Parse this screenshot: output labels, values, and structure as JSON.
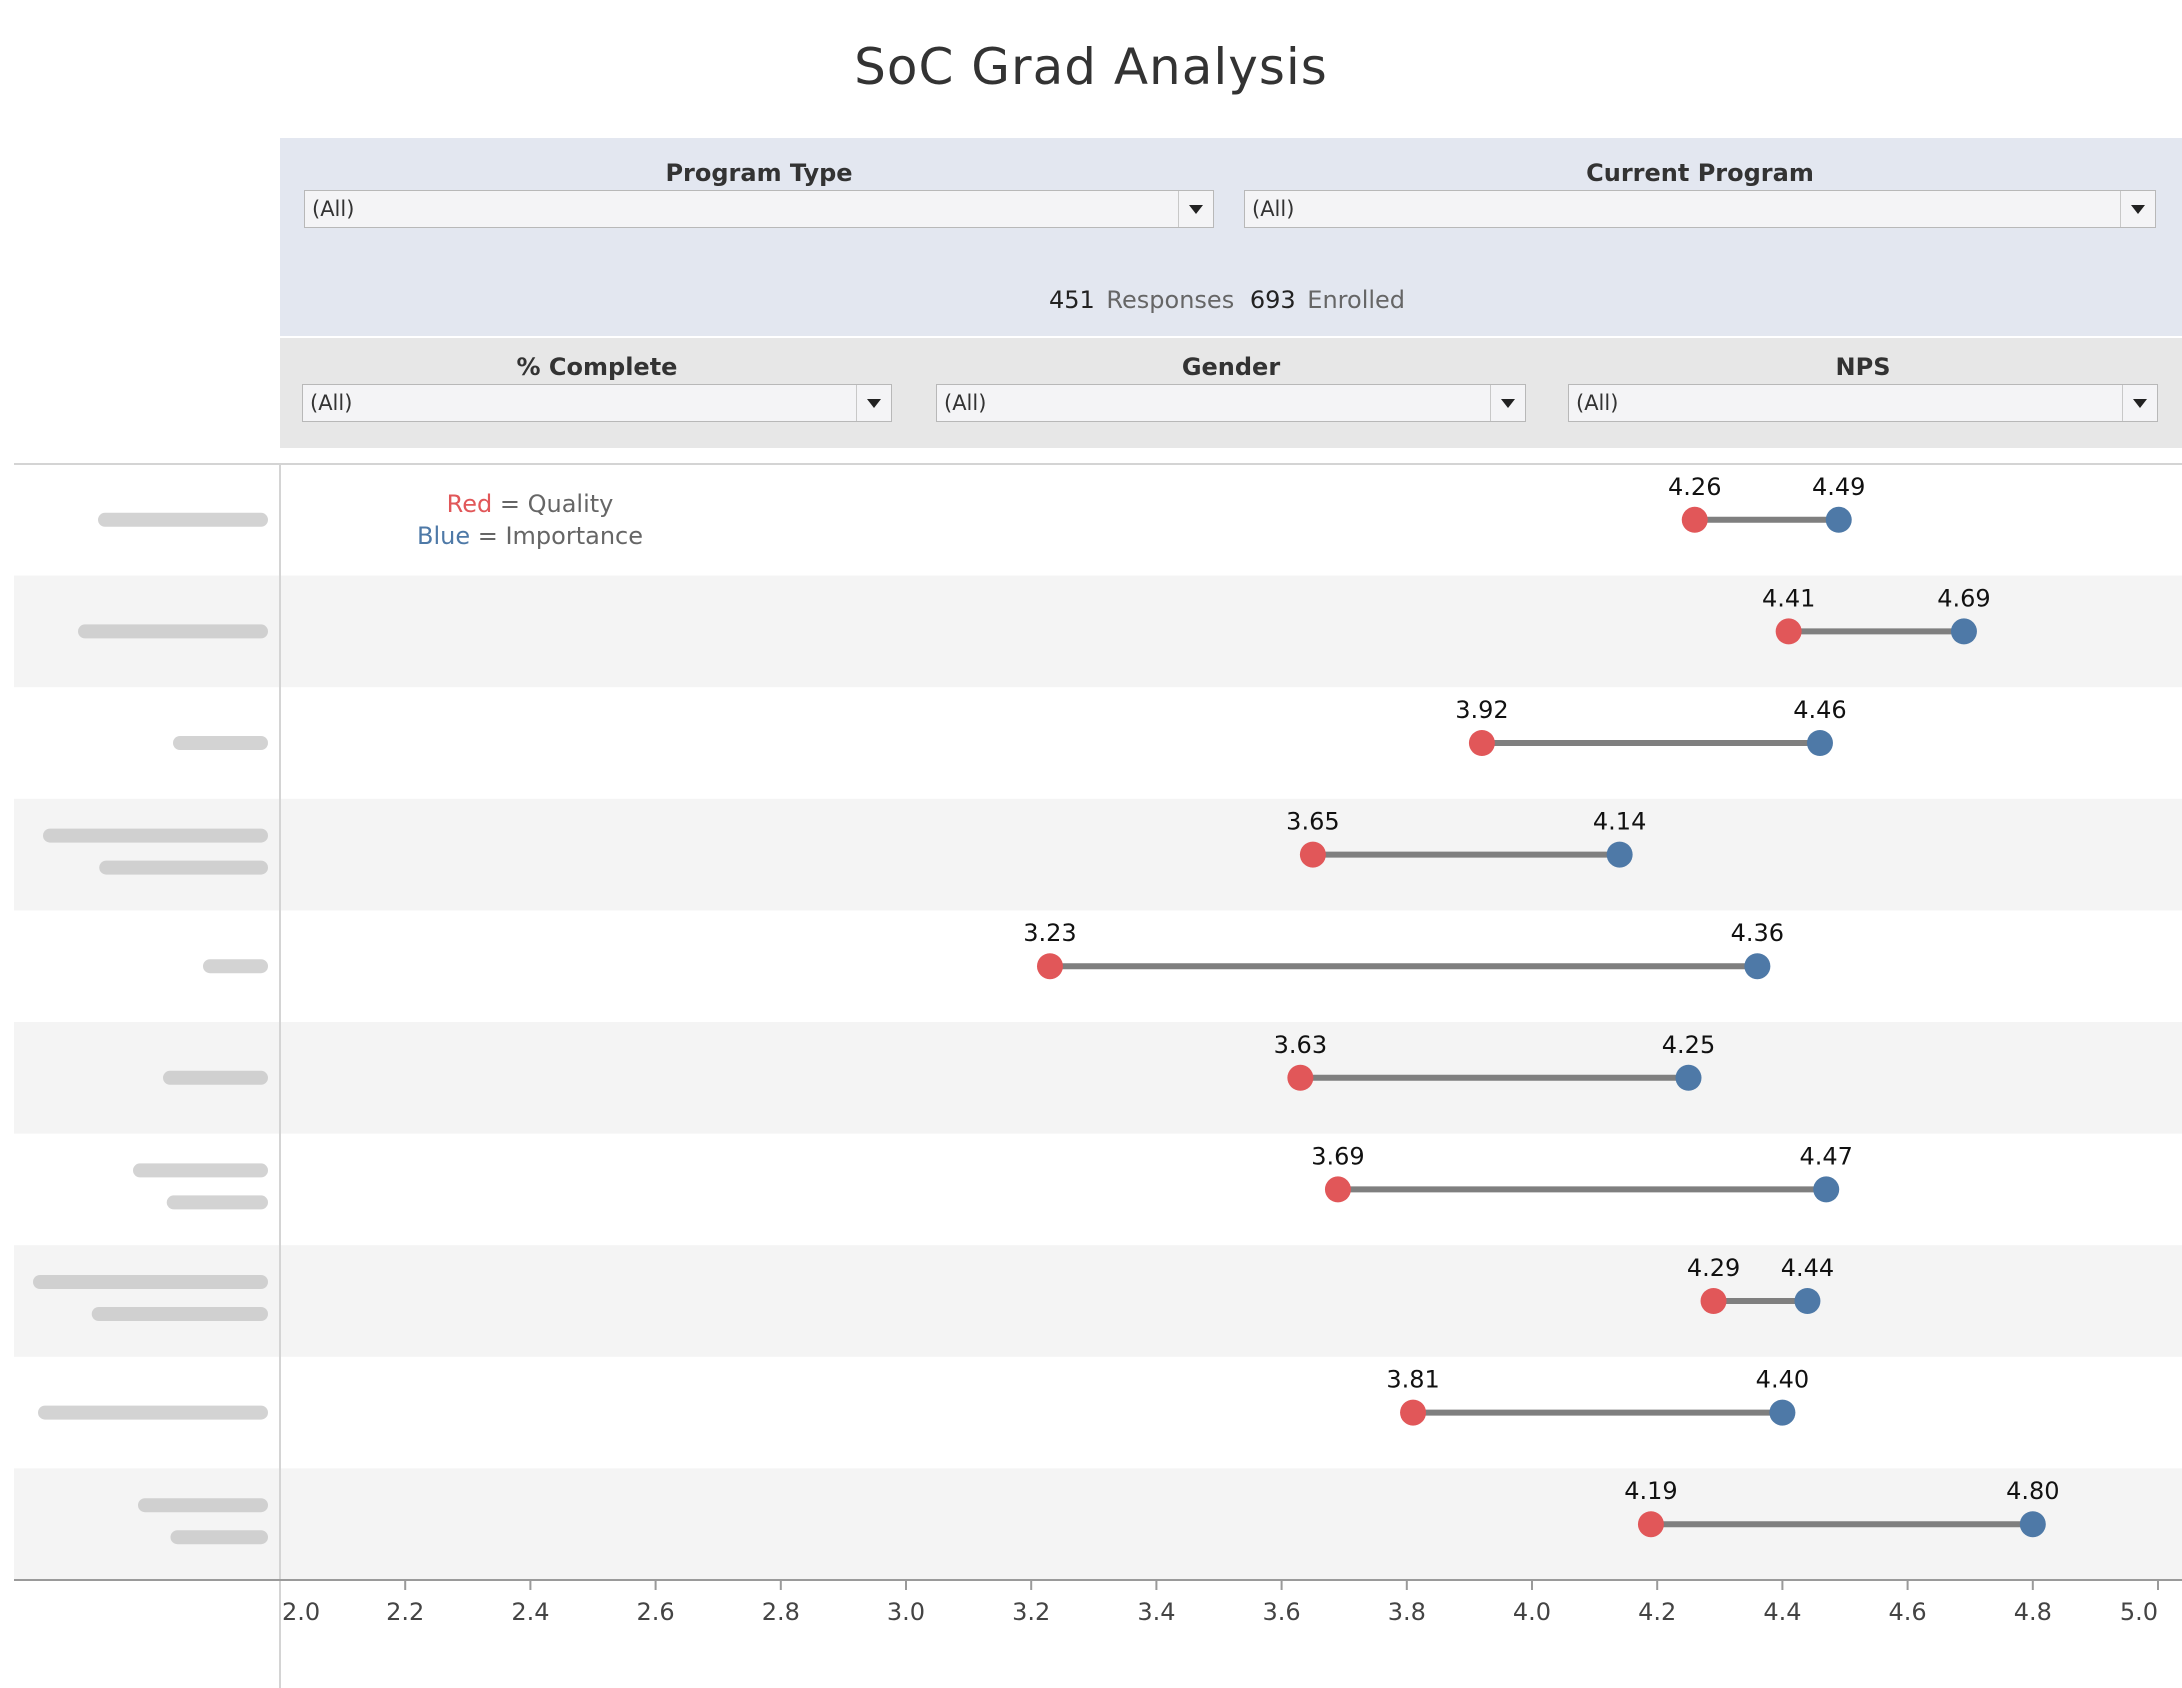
{
  "title": "SoC Grad Analysis",
  "filters_top": [
    {
      "label": "Program Type",
      "value": "(All)"
    },
    {
      "label": "Current Program",
      "value": "(All)"
    }
  ],
  "counts": {
    "responses_value": "451",
    "responses_label": "Responses",
    "enrolled_value": "693",
    "enrolled_label": "Enrolled"
  },
  "filters_bottom": [
    {
      "label": "% Complete",
      "value": "(All)"
    },
    {
      "label": "Gender",
      "value": "(All)"
    },
    {
      "label": "NPS",
      "value": "(All)"
    }
  ],
  "legend": {
    "red_word": "Red",
    "red_text": "= Quality",
    "blue_word": "Blue",
    "blue_text": "= Importance"
  },
  "colors": {
    "quality": "#e15759",
    "importance": "#4e79a7",
    "connector": "#7f7f7f",
    "band": "#f4f4f4"
  },
  "chart_data": {
    "type": "dumbbell",
    "categories": [
      "",
      "",
      "",
      "",
      "",
      "",
      "",
      "",
      "",
      ""
    ],
    "category_labels_obscured": true,
    "series": [
      {
        "name": "Quality",
        "values": [
          4.26,
          4.41,
          3.92,
          3.65,
          3.23,
          3.63,
          3.69,
          4.29,
          3.81,
          4.19
        ]
      },
      {
        "name": "Importance",
        "values": [
          4.49,
          4.69,
          4.46,
          4.14,
          4.36,
          4.25,
          4.47,
          4.44,
          4.4,
          4.8
        ]
      }
    ],
    "xlim": [
      2.0,
      5.0
    ],
    "xticks": [
      "2.0",
      "2.2",
      "2.4",
      "2.6",
      "2.8",
      "3.0",
      "3.2",
      "3.4",
      "3.6",
      "3.8",
      "4.0",
      "4.2",
      "4.4",
      "4.6",
      "4.8",
      "5.0"
    ],
    "xlabel": "",
    "ylabel": "",
    "grid": false
  }
}
